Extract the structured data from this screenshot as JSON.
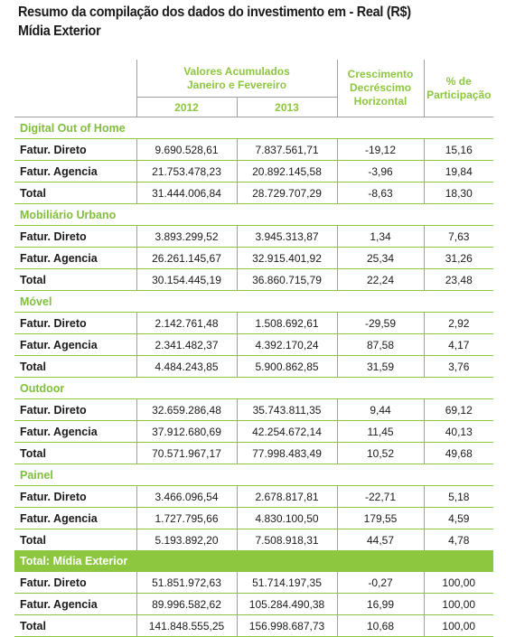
{
  "title": {
    "line1": "Resumo da compilação dos dados do investimento em - Real (R$)",
    "line2": "Mídia Exterior"
  },
  "header": {
    "group_line1": "Valores Acumulados",
    "group_line2": "Janeiro e Fevereiro",
    "year1": "2012",
    "year2": "2013",
    "growth_line1": "Crescimento",
    "growth_line2": "Decréscimo",
    "growth_line3": "Horizontal",
    "share_line1": "% de",
    "share_line2": "Participação"
  },
  "sections": [
    {
      "name": "Digital Out of Home",
      "rows": [
        {
          "label": "Fatur. Direto",
          "v2012": "9.690.528,61",
          "v2013": "7.837.561,71",
          "growth": "-19,12",
          "share": "15,16"
        },
        {
          "label": "Fatur. Agencia",
          "v2012": "21.753.478,23",
          "v2013": "20.892.145,58",
          "growth": "-3,96",
          "share": "19,84"
        },
        {
          "label": "Total",
          "v2012": "31.444.006,84",
          "v2013": "28.729.707,29",
          "growth": "-8,63",
          "share": "18,30"
        }
      ]
    },
    {
      "name": "Mobiliário Urbano",
      "rows": [
        {
          "label": "Fatur. Direto",
          "v2012": "3.893.299,52",
          "v2013": "3.945.313,87",
          "growth": "1,34",
          "share": "7,63"
        },
        {
          "label": "Fatur. Agencia",
          "v2012": "26.261.145,67",
          "v2013": "32.915.401,92",
          "growth": "25,34",
          "share": "31,26"
        },
        {
          "label": "Total",
          "v2012": "30.154.445,19",
          "v2013": "36.860.715,79",
          "growth": "22,24",
          "share": "23,48"
        }
      ]
    },
    {
      "name": "Móvel",
      "rows": [
        {
          "label": "Fatur. Direto",
          "v2012": "2.142.761,48",
          "v2013": "1.508.692,61",
          "growth": "-29,59",
          "share": "2,92"
        },
        {
          "label": "Fatur. Agencia",
          "v2012": "2.341.482,37",
          "v2013": "4.392.170,24",
          "growth": "87,58",
          "share": "4,17"
        },
        {
          "label": "Total",
          "v2012": "4.484.243,85",
          "v2013": "5.900.862,85",
          "growth": "31,59",
          "share": "3,76"
        }
      ]
    },
    {
      "name": "Outdoor",
      "rows": [
        {
          "label": "Fatur. Direto",
          "v2012": "32.659.286,48",
          "v2013": "35.743.811,35",
          "growth": "9,44",
          "share": "69,12"
        },
        {
          "label": "Fatur. Agencia",
          "v2012": "37.912.680,69",
          "v2013": "42.254.672,14",
          "growth": "11,45",
          "share": "40,13"
        },
        {
          "label": "Total",
          "v2012": "70.571.967,17",
          "v2013": "77.998.483,49",
          "growth": "10,52",
          "share": "49,68"
        }
      ]
    },
    {
      "name": "Painel",
      "rows": [
        {
          "label": "Fatur. Direto",
          "v2012": "3.466.096,54",
          "v2013": "2.678.817,81",
          "growth": "-22,71",
          "share": "5,18"
        },
        {
          "label": "Fatur. Agencia",
          "v2012": "1.727.795,66",
          "v2013": "4.830.100,50",
          "growth": "179,55",
          "share": "4,59"
        },
        {
          "label": "Total",
          "v2012": "5.193.892,20",
          "v2013": "7.508.918,31",
          "growth": "44,57",
          "share": "4,78"
        }
      ]
    },
    {
      "name": "Total: Mídia Exterior",
      "highlight": true,
      "rows": [
        {
          "label": "Fatur. Direto",
          "v2012": "51.851.972,63",
          "v2013": "51.714.197,35",
          "growth": "-0,27",
          "share": "100,00"
        },
        {
          "label": "Fatur. Agencia",
          "v2012": "89.996.582,62",
          "v2013": "105.284.490,38",
          "growth": "16,99",
          "share": "100,00"
        },
        {
          "label": "Total",
          "v2012": "141.848.555,25",
          "v2013": "156.998.687,73",
          "growth": "10,68",
          "share": "100,00"
        }
      ]
    }
  ],
  "colors": {
    "accent_green": "#8dc63f",
    "grid_gray": "#a0a0a0",
    "text": "#1a1a1a"
  }
}
